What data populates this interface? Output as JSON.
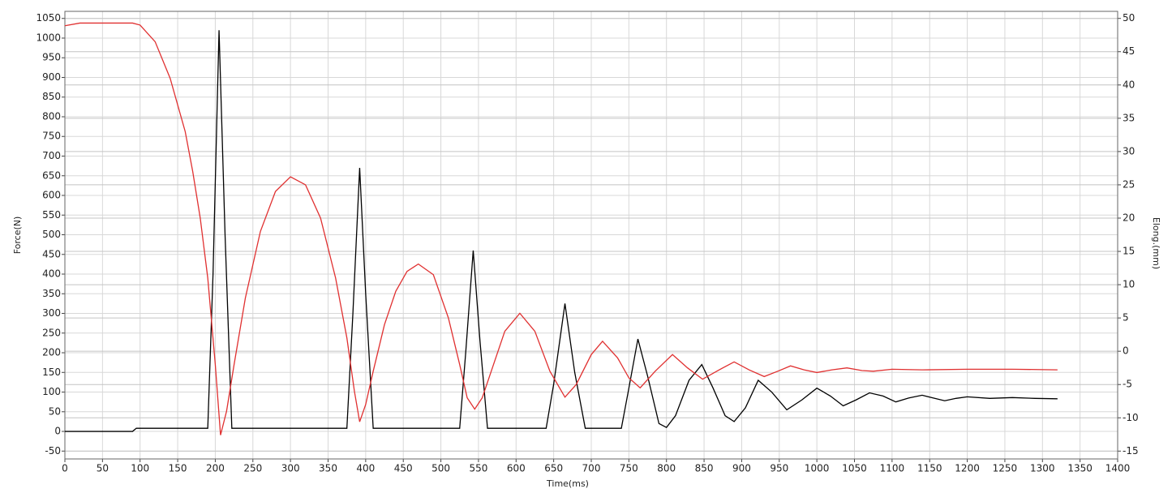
{
  "chart_data": {
    "type": "line",
    "xlabel": "Time(ms)",
    "ylabel": "Force(N)",
    "y2label": "Elong.(mm)",
    "xlim": [
      0,
      1400
    ],
    "xticks": [
      0,
      50,
      100,
      150,
      200,
      250,
      300,
      350,
      400,
      450,
      500,
      550,
      600,
      650,
      700,
      750,
      800,
      850,
      900,
      950,
      1000,
      1050,
      1100,
      1150,
      1200,
      1250,
      1300,
      1350,
      1400
    ],
    "ylim": [
      -70,
      1068
    ],
    "yticks": [
      -50,
      0,
      50,
      100,
      150,
      200,
      250,
      300,
      350,
      400,
      450,
      500,
      550,
      600,
      650,
      700,
      750,
      800,
      850,
      900,
      950,
      1000,
      1050
    ],
    "y2lim": [
      -16.18,
      51.06
    ],
    "y2ticks": [
      -15,
      -10,
      -5,
      0,
      5,
      10,
      15,
      20,
      25,
      30,
      35,
      40,
      45,
      50
    ],
    "grid": true,
    "series": [
      {
        "name": "Force",
        "color": "#000000",
        "axis": "y",
        "x": [
          0,
          90,
          95,
          190,
          197,
          205,
          213,
          222,
          375,
          383,
          392,
          400,
          410,
          525,
          533,
          543,
          552,
          562,
          640,
          650,
          665,
          678,
          692,
          740,
          750,
          762,
          775,
          790,
          800,
          812,
          830,
          847,
          862,
          878,
          890,
          905,
          922,
          940,
          960,
          980,
          1000,
          1018,
          1035,
          1052,
          1070,
          1088,
          1105,
          1122,
          1140,
          1155,
          1170,
          1185,
          1200,
          1230,
          1260,
          1290,
          1320
        ],
        "values": [
          0,
          0,
          8,
          8,
          400,
          1020,
          500,
          8,
          8,
          300,
          670,
          350,
          8,
          8,
          200,
          460,
          230,
          8,
          8,
          120,
          325,
          150,
          8,
          8,
          110,
          235,
          140,
          20,
          10,
          40,
          130,
          170,
          110,
          40,
          25,
          60,
          130,
          100,
          55,
          80,
          110,
          90,
          65,
          80,
          98,
          90,
          75,
          85,
          92,
          85,
          78,
          84,
          88,
          84,
          86,
          84,
          83
        ]
      },
      {
        "name": "Elong.",
        "color": "#e03030",
        "axis": "y2",
        "x": [
          0,
          20,
          90,
          100,
          120,
          140,
          160,
          170,
          180,
          190,
          200,
          207,
          215,
          225,
          240,
          260,
          280,
          300,
          320,
          340,
          360,
          375,
          385,
          392,
          400,
          410,
          425,
          440,
          455,
          470,
          490,
          510,
          525,
          535,
          545,
          555,
          570,
          585,
          605,
          625,
          645,
          665,
          680,
          700,
          715,
          735,
          750,
          765,
          785,
          808,
          828,
          848,
          870,
          890,
          910,
          930,
          948,
          965,
          983,
          1000,
          1020,
          1040,
          1060,
          1075,
          1100,
          1140,
          1200,
          1260,
          1320
        ],
        "values": [
          48.9,
          49.3,
          49.3,
          49,
          46.5,
          41,
          33,
          27,
          20,
          11,
          -2,
          -12.6,
          -9,
          -2,
          8,
          18,
          24,
          26.2,
          25,
          20,
          11,
          2,
          -6,
          -10.6,
          -8,
          -3,
          4,
          9,
          12,
          13.1,
          11.5,
          5,
          -2,
          -7,
          -8.7,
          -7,
          -2,
          3,
          5.7,
          3,
          -3,
          -6.9,
          -5,
          -0.5,
          1.5,
          -1,
          -4,
          -5.5,
          -3,
          -0.5,
          -2.5,
          -4.2,
          -2.8,
          -1.6,
          -2.8,
          -3.8,
          -3,
          -2.2,
          -2.8,
          -3.2,
          -2.8,
          -2.5,
          -2.9,
          -3,
          -2.7,
          -2.8,
          -2.7,
          -2.7,
          -2.8
        ]
      }
    ]
  }
}
